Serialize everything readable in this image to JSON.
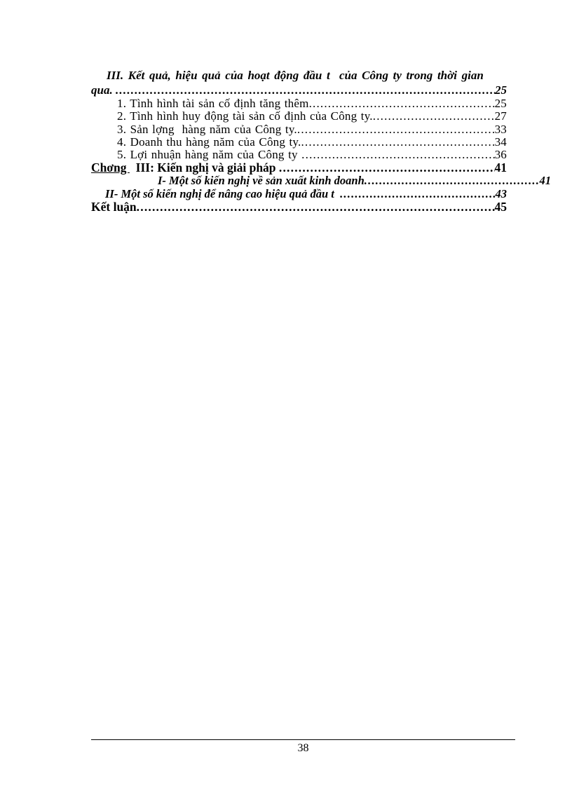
{
  "document": {
    "footer": {
      "page_number": "38"
    },
    "toc": {
      "entries": [
        {
          "text": "III. Kết quả, hiệu quả của hoạt động đầu t  của Công ty trong thời gian",
          "page": "",
          "style": "heading-first",
          "leader": false
        },
        {
          "text": "qua. ",
          "page": "25",
          "style": "heading-cont",
          "leader": true
        },
        {
          "text": "1. Tình hình tài sản cố định tăng thêm",
          "page": "25",
          "style": "item",
          "leader": true
        },
        {
          "text": "2. Tình hình huy động tài sản cố định của Công ty.",
          "page": "27",
          "style": "item",
          "leader": true
        },
        {
          "text": "3. Sản lợng  hàng năm của Công ty.",
          "page": "33",
          "style": "item",
          "leader": true
        },
        {
          "text": "4. Doanh thu hàng năm của Công ty.",
          "page": "34",
          "style": "item",
          "leader": true
        },
        {
          "text": "5. Lợi nhuận hàng năm của Công ty ",
          "page": "36",
          "style": "item",
          "leader": true
        },
        {
          "prefix": "Chơng ",
          "text": "  III: Kiến nghị và giải pháp ",
          "page": "41",
          "style": "chapter",
          "leader": true
        },
        {
          "text": "I- Một số kiến nghị về sản xuất kinh doanh",
          "page": "41",
          "style": "sub-indent",
          "leader": true
        },
        {
          "text": "II- Một số kiến nghị để nâng cao hiệu quả đầu t  ",
          "page": "43",
          "style": "sub",
          "leader": true
        },
        {
          "text": "Kết luận",
          "page": "45",
          "style": "conclusion",
          "leader": true
        }
      ]
    }
  }
}
